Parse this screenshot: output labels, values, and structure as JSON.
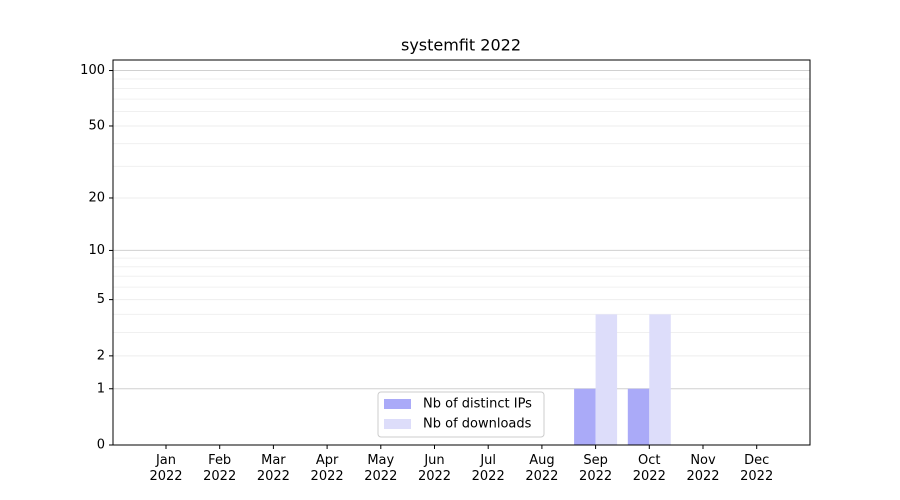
{
  "chart_data": {
    "type": "bar",
    "title": "systemfit 2022",
    "categories": [
      "Jan 2022",
      "Feb 2022",
      "Mar 2022",
      "Apr 2022",
      "May 2022",
      "Jun 2022",
      "Jul 2022",
      "Aug 2022",
      "Sep 2022",
      "Oct 2022",
      "Nov 2022",
      "Dec 2022"
    ],
    "series": [
      {
        "name": "Nb of distinct IPs",
        "color": "#aaaaf8",
        "values": [
          0,
          0,
          0,
          0,
          0,
          0,
          0,
          0,
          1,
          1,
          0,
          0
        ]
      },
      {
        "name": "Nb of downloads",
        "color": "#ddddfa",
        "values": [
          0,
          0,
          0,
          0,
          0,
          0,
          0,
          0,
          4,
          4,
          0,
          0
        ]
      }
    ],
    "yscale": "log1p",
    "ylim": [
      0,
      114
    ],
    "yticks": [
      0,
      1,
      2,
      5,
      10,
      20,
      50,
      100
    ],
    "minor_yticks": [
      3,
      4,
      6,
      7,
      8,
      9,
      30,
      40,
      60,
      70,
      80,
      90
    ],
    "grid": true,
    "legend": "lower center"
  }
}
